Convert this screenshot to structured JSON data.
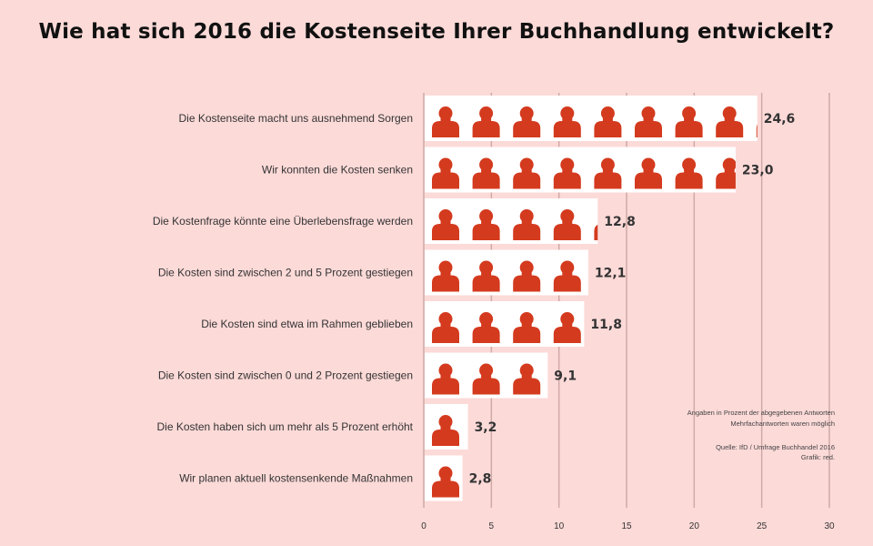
{
  "chart_data": {
    "type": "bar",
    "title": "Wie hat sich 2016 die Kostenseite Ihrer Buchhandlung  entwickelt?",
    "categories": [
      "Die Kostenseite macht uns ausnehmend Sorgen",
      "Wir konnten die Kosten senken",
      "Die Kostenfrage könnte eine Überlebensfrage werden",
      "Die Kosten sind zwischen 2 und 5 Prozent gestiegen",
      "Die Kosten sind etwa im Rahmen geblieben",
      "Die Kosten sind zwischen 0 und 2 Prozent gestiegen",
      "Die Kosten haben sich um mehr als 5 Prozent erhöht",
      "Wir planen aktuell kostensenkende Maßnahmen"
    ],
    "values": [
      24.6,
      23.0,
      12.8,
      12.1,
      11.8,
      9.1,
      3.2,
      2.8
    ],
    "value_labels": [
      "24,6",
      "23,0",
      "12,8",
      "12,1",
      "11,8",
      "9,1",
      "3,2",
      "2,8"
    ],
    "xlim": [
      0,
      30
    ],
    "xticks": [
      0,
      5,
      10,
      15,
      20,
      25,
      30
    ],
    "grid": true,
    "bar_color": "#d43a1e",
    "icon": "person-icon",
    "notes": [
      "Angaben in Prozent der abgegebenen Antworten",
      "Mehrfachantworten waren möglich",
      "Quelle: IfD / Umfrage Buchhandel 2016",
      "Grafik: red."
    ]
  }
}
